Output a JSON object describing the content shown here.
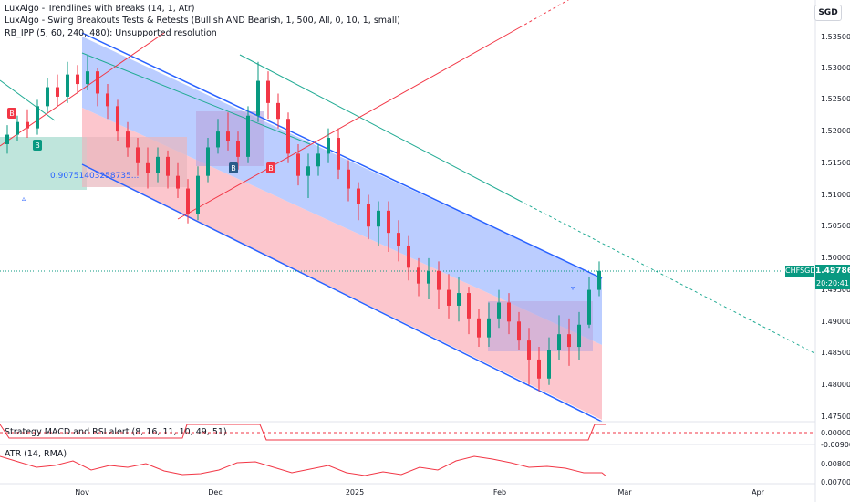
{
  "legends": {
    "trendlines": "LuxAlgo - Trendlines with Breaks (14, 1, Atr)",
    "swing": "LuxAlgo - Swing Breakouts Tests & Retests (Bullish AND Bearish, 1, 500, All, 0, 10, 1, small)",
    "rbipp": "RB_IPP (5, 60, 240, 480): Unsupported resolution",
    "strategy": "Strategy MACD and RSI alert (8, 16, 11, 10, 49, 51)",
    "atr": "ATR (14, RMA)"
  },
  "currency": "SGD",
  "symbol": "CHFSGD",
  "last_price": "1.49786",
  "countdown": "20:20:41",
  "fib_label": "0.90751403258735...",
  "markers": [
    "B",
    "B",
    "B",
    "B"
  ],
  "colors": {
    "up": "#089981",
    "down": "#f23645",
    "channel_line": "#2962ff",
    "channel_upper_fill": "#aac0ff",
    "channel_lower_fill": "#fcbcc4",
    "trend_teal": "#22ab94",
    "trend_red": "#f23645"
  },
  "chart_data": {
    "type": "candlestick",
    "series": [
      {
        "name": "CHFSGD"
      }
    ],
    "price_axis_ticks": [
      "1.53500",
      "1.53000",
      "1.52500",
      "1.52000",
      "1.51500",
      "1.51000",
      "1.50500",
      "1.50000",
      "1.49500",
      "1.49000",
      "1.48500",
      "1.48000",
      "1.47500"
    ],
    "ylim": [
      1.474,
      1.538
    ],
    "time_axis_ticks": [
      "Nov",
      "Dec",
      "2025",
      "Feb",
      "Mar",
      "Apr"
    ],
    "strategy_axis_ticks": [
      "0.00000"
    ],
    "atr_axis_ticks": [
      "-0.00900",
      "0.00800",
      "0.00700"
    ],
    "last_price": 1.49786
  }
}
